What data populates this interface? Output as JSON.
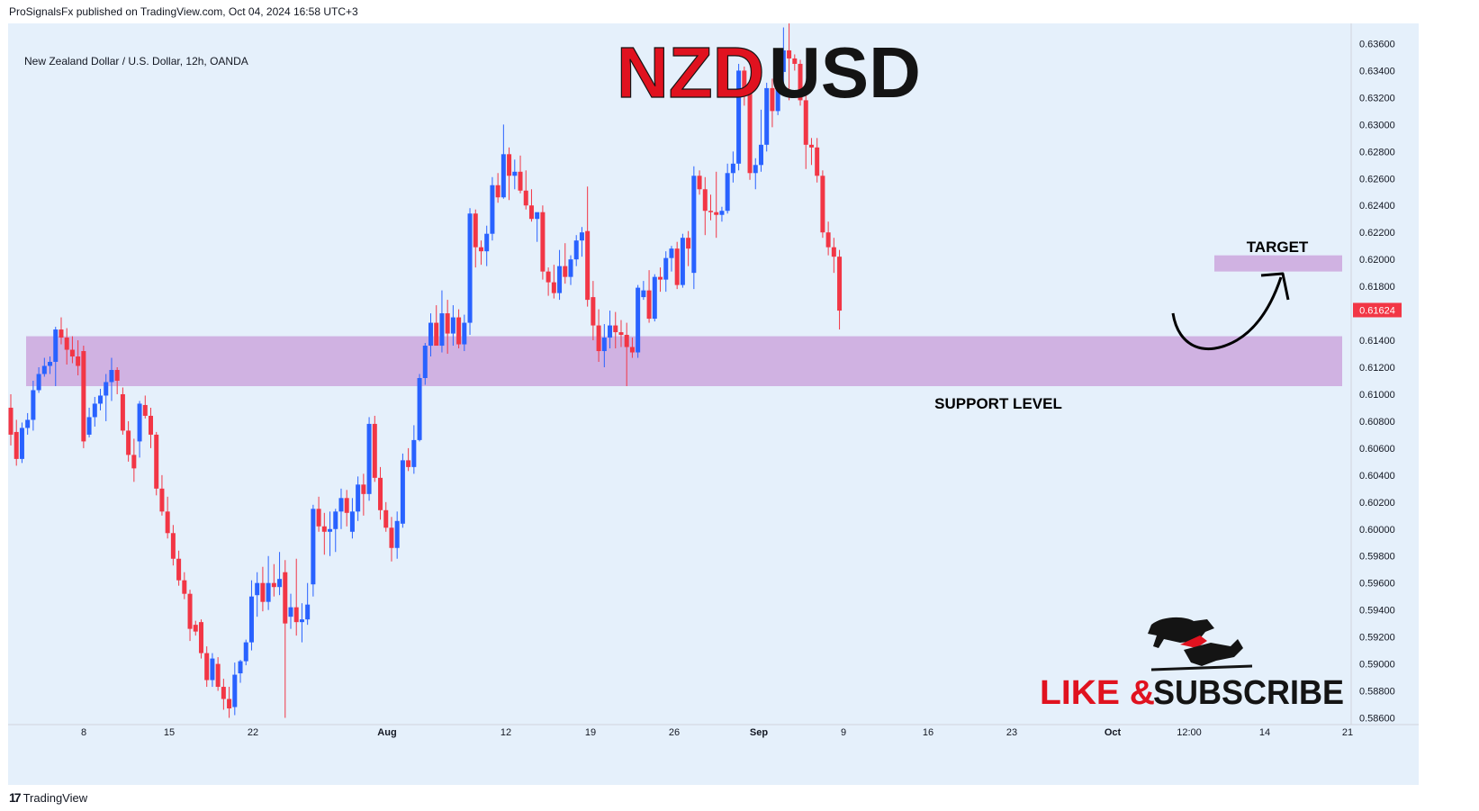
{
  "header": {
    "published": "ProSignalsFx published on TradingView.com, Oct 04, 2024 16:58 UTC+3",
    "symbol_line": "New Zealand Dollar / U.S. Dollar, 12h, OANDA"
  },
  "footer": {
    "brand": "TradingView",
    "logo_glyph": "17"
  },
  "annotations": {
    "title_a": "NZD",
    "title_b": "USD",
    "target": "TARGET",
    "support": "SUPPORT LEVEL",
    "cta_a": "LIKE & ",
    "cta_b": "SUBSCRIBE"
  },
  "chart_data": {
    "type": "candlestick",
    "title": "NZDUSD",
    "interval": "12h",
    "ylim": [
      0.5855,
      0.6375
    ],
    "y_ticks": [
      "0.63600",
      "0.63400",
      "0.63200",
      "0.63000",
      "0.62800",
      "0.62600",
      "0.62400",
      "0.62200",
      "0.62000",
      "0.61800",
      "0.61600",
      "0.61400",
      "0.61200",
      "0.61000",
      "0.60800",
      "0.60600",
      "0.60400",
      "0.60200",
      "0.60000",
      "0.59800",
      "0.59600",
      "0.59400",
      "0.59200",
      "0.59000",
      "0.58800",
      "0.58600"
    ],
    "x_ticks": [
      "8",
      "15",
      "22",
      "Aug",
      "12",
      "19",
      "26",
      "Sep",
      "9",
      "16",
      "23",
      "Oct",
      "12:00",
      "14",
      "21"
    ],
    "last_price": "0.61624",
    "bull_color": "#2962ff",
    "bear_color": "#f23645",
    "support_zone": [
      0.6106,
      0.6143
    ],
    "target_zone": [
      0.6191,
      0.6203
    ],
    "candles": [
      [
        0.609,
        0.61,
        0.6062,
        0.607
      ],
      [
        0.6072,
        0.6081,
        0.6047,
        0.6052
      ],
      [
        0.6052,
        0.6079,
        0.6049,
        0.6075
      ],
      [
        0.6075,
        0.6086,
        0.607,
        0.6081
      ],
      [
        0.6081,
        0.611,
        0.6073,
        0.6103
      ],
      [
        0.6103,
        0.612,
        0.6101,
        0.6115
      ],
      [
        0.6115,
        0.6127,
        0.6113,
        0.6121
      ],
      [
        0.6121,
        0.6128,
        0.6115,
        0.6124
      ],
      [
        0.6124,
        0.615,
        0.6106,
        0.6148
      ],
      [
        0.6148,
        0.6157,
        0.6137,
        0.6142
      ],
      [
        0.6142,
        0.6149,
        0.6122,
        0.6133
      ],
      [
        0.6133,
        0.6143,
        0.6123,
        0.6128
      ],
      [
        0.6128,
        0.614,
        0.6114,
        0.6121
      ],
      [
        0.6132,
        0.6136,
        0.606,
        0.6065
      ],
      [
        0.607,
        0.609,
        0.6068,
        0.6083
      ],
      [
        0.6083,
        0.6098,
        0.6076,
        0.6093
      ],
      [
        0.6093,
        0.6104,
        0.6088,
        0.6099
      ],
      [
        0.6099,
        0.6115,
        0.608,
        0.6109
      ],
      [
        0.6109,
        0.6127,
        0.6095,
        0.6118
      ],
      [
        0.6118,
        0.612,
        0.61,
        0.611
      ],
      [
        0.61,
        0.6105,
        0.607,
        0.6073
      ],
      [
        0.6073,
        0.608,
        0.605,
        0.6055
      ],
      [
        0.6055,
        0.6067,
        0.6035,
        0.6045
      ],
      [
        0.6065,
        0.6095,
        0.6053,
        0.6093
      ],
      [
        0.6092,
        0.6099,
        0.6082,
        0.6084
      ],
      [
        0.6084,
        0.609,
        0.606,
        0.607
      ],
      [
        0.607,
        0.6072,
        0.6025,
        0.603
      ],
      [
        0.603,
        0.604,
        0.601,
        0.6013
      ],
      [
        0.6013,
        0.6024,
        0.5993,
        0.5997
      ],
      [
        0.5997,
        0.6003,
        0.5973,
        0.5978
      ],
      [
        0.5978,
        0.5984,
        0.5958,
        0.5962
      ],
      [
        0.5962,
        0.5968,
        0.5948,
        0.5952
      ],
      [
        0.5952,
        0.5955,
        0.5917,
        0.5926
      ],
      [
        0.5929,
        0.5932,
        0.5921,
        0.5924
      ],
      [
        0.5931,
        0.5933,
        0.5904,
        0.5908
      ],
      [
        0.5908,
        0.5913,
        0.5883,
        0.5888
      ],
      [
        0.5888,
        0.5908,
        0.5883,
        0.5904
      ],
      [
        0.59,
        0.5905,
        0.588,
        0.5883
      ],
      [
        0.5883,
        0.5889,
        0.5866,
        0.5874
      ],
      [
        0.5874,
        0.5883,
        0.586,
        0.5867
      ],
      [
        0.5868,
        0.5901,
        0.5862,
        0.5892
      ],
      [
        0.5893,
        0.5903,
        0.5886,
        0.5902
      ],
      [
        0.5902,
        0.5918,
        0.5899,
        0.5916
      ],
      [
        0.5916,
        0.5962,
        0.591,
        0.595
      ],
      [
        0.5951,
        0.5968,
        0.5935,
        0.596
      ],
      [
        0.596,
        0.5972,
        0.5939,
        0.5946
      ],
      [
        0.5946,
        0.598,
        0.594,
        0.596
      ],
      [
        0.596,
        0.5974,
        0.595,
        0.5957
      ],
      [
        0.5957,
        0.5983,
        0.5951,
        0.5963
      ],
      [
        0.5968,
        0.5977,
        0.586,
        0.593
      ],
      [
        0.5935,
        0.5952,
        0.5926,
        0.5942
      ],
      [
        0.5942,
        0.5978,
        0.5921,
        0.5931
      ],
      [
        0.5931,
        0.5945,
        0.5916,
        0.5933
      ],
      [
        0.5933,
        0.596,
        0.5929,
        0.5944
      ],
      [
        0.5959,
        0.6018,
        0.595,
        0.6015
      ],
      [
        0.6015,
        0.6024,
        0.5998,
        0.6002
      ],
      [
        0.6002,
        0.6012,
        0.5981,
        0.5998
      ],
      [
        0.5998,
        0.6013,
        0.598,
        0.6
      ],
      [
        0.6,
        0.6015,
        0.5983,
        0.6013
      ],
      [
        0.6013,
        0.603,
        0.6,
        0.6023
      ],
      [
        0.6023,
        0.6029,
        0.6002,
        0.6012
      ],
      [
        0.5998,
        0.6023,
        0.5993,
        0.6013
      ],
      [
        0.6013,
        0.6039,
        0.6006,
        0.6033
      ],
      [
        0.6033,
        0.6041,
        0.601,
        0.6026
      ],
      [
        0.6026,
        0.6083,
        0.6021,
        0.6078
      ],
      [
        0.6078,
        0.6084,
        0.6035,
        0.6038
      ],
      [
        0.6038,
        0.6046,
        0.6007,
        0.6014
      ],
      [
        0.6014,
        0.602,
        0.5998,
        0.6001
      ],
      [
        0.6001,
        0.6009,
        0.5976,
        0.5986
      ],
      [
        0.5986,
        0.6013,
        0.5978,
        0.6006
      ],
      [
        0.6004,
        0.6056,
        0.6001,
        0.6051
      ],
      [
        0.6051,
        0.606,
        0.6043,
        0.6046
      ],
      [
        0.6046,
        0.6077,
        0.6041,
        0.6066
      ],
      [
        0.6066,
        0.6115,
        0.6065,
        0.6112
      ],
      [
        0.6112,
        0.6138,
        0.6107,
        0.6136
      ],
      [
        0.6136,
        0.616,
        0.6128,
        0.6153
      ],
      [
        0.6153,
        0.6166,
        0.614,
        0.6136
      ],
      [
        0.6136,
        0.6177,
        0.6131,
        0.616
      ],
      [
        0.616,
        0.617,
        0.613,
        0.6145
      ],
      [
        0.6145,
        0.6166,
        0.6136,
        0.6157
      ],
      [
        0.6157,
        0.6163,
        0.6134,
        0.6137
      ],
      [
        0.6137,
        0.6159,
        0.6132,
        0.6153
      ],
      [
        0.6153,
        0.6238,
        0.6144,
        0.6234
      ],
      [
        0.6234,
        0.6237,
        0.6194,
        0.6209
      ],
      [
        0.6209,
        0.6214,
        0.6196,
        0.6206
      ],
      [
        0.6206,
        0.6225,
        0.6195,
        0.6219
      ],
      [
        0.6219,
        0.6261,
        0.6214,
        0.6255
      ],
      [
        0.6255,
        0.6264,
        0.6242,
        0.6246
      ],
      [
        0.6246,
        0.63,
        0.6245,
        0.6278
      ],
      [
        0.6278,
        0.6283,
        0.6244,
        0.6262
      ],
      [
        0.6262,
        0.6274,
        0.6252,
        0.6265
      ],
      [
        0.6265,
        0.6277,
        0.6249,
        0.6251
      ],
      [
        0.6251,
        0.6266,
        0.6237,
        0.624
      ],
      [
        0.624,
        0.6252,
        0.6228,
        0.623
      ],
      [
        0.623,
        0.6233,
        0.6213,
        0.6235
      ],
      [
        0.6235,
        0.624,
        0.6185,
        0.6191
      ],
      [
        0.6191,
        0.6194,
        0.6173,
        0.6183
      ],
      [
        0.6183,
        0.6196,
        0.6171,
        0.6175
      ],
      [
        0.6175,
        0.6207,
        0.617,
        0.6195
      ],
      [
        0.6195,
        0.6212,
        0.6182,
        0.6187
      ],
      [
        0.6187,
        0.6203,
        0.6181,
        0.62
      ],
      [
        0.62,
        0.6218,
        0.6195,
        0.6214
      ],
      [
        0.6214,
        0.6224,
        0.6202,
        0.622
      ],
      [
        0.6221,
        0.6254,
        0.6165,
        0.617
      ],
      [
        0.6172,
        0.6184,
        0.614,
        0.6151
      ],
      [
        0.6151,
        0.6163,
        0.6124,
        0.6132
      ],
      [
        0.6132,
        0.6152,
        0.612,
        0.6142
      ],
      [
        0.6142,
        0.6162,
        0.6134,
        0.6151
      ],
      [
        0.6151,
        0.6161,
        0.6134,
        0.6146
      ],
      [
        0.6146,
        0.6155,
        0.6135,
        0.6144
      ],
      [
        0.6144,
        0.6153,
        0.6106,
        0.6135
      ],
      [
        0.6135,
        0.6142,
        0.6127,
        0.6131
      ],
      [
        0.6131,
        0.6181,
        0.6127,
        0.6179
      ],
      [
        0.6172,
        0.6184,
        0.617,
        0.6177
      ],
      [
        0.6177,
        0.6192,
        0.6153,
        0.6156
      ],
      [
        0.6156,
        0.6189,
        0.6154,
        0.6187
      ],
      [
        0.6187,
        0.6194,
        0.6176,
        0.6185
      ],
      [
        0.6185,
        0.6206,
        0.6176,
        0.6201
      ],
      [
        0.6201,
        0.621,
        0.6191,
        0.6208
      ],
      [
        0.6208,
        0.6213,
        0.6178,
        0.6181
      ],
      [
        0.6181,
        0.6219,
        0.6179,
        0.6216
      ],
      [
        0.6216,
        0.6221,
        0.6195,
        0.6208
      ],
      [
        0.619,
        0.6269,
        0.6178,
        0.6262
      ],
      [
        0.6262,
        0.6266,
        0.6248,
        0.6252
      ],
      [
        0.6252,
        0.6261,
        0.6218,
        0.6236
      ],
      [
        0.6236,
        0.6248,
        0.6229,
        0.6235
      ],
      [
        0.6235,
        0.6265,
        0.6216,
        0.6233
      ],
      [
        0.6233,
        0.6239,
        0.6228,
        0.6236
      ],
      [
        0.6236,
        0.6271,
        0.6234,
        0.6264
      ],
      [
        0.6264,
        0.628,
        0.6257,
        0.6271
      ],
      [
        0.6271,
        0.6345,
        0.6266,
        0.634
      ],
      [
        0.634,
        0.6343,
        0.6314,
        0.6324
      ],
      [
        0.6324,
        0.6327,
        0.6259,
        0.6264
      ],
      [
        0.6264,
        0.6275,
        0.6252,
        0.627
      ],
      [
        0.627,
        0.6311,
        0.6265,
        0.6285
      ],
      [
        0.6285,
        0.6331,
        0.628,
        0.6327
      ],
      [
        0.6327,
        0.6334,
        0.6298,
        0.631
      ],
      [
        0.631,
        0.6348,
        0.6307,
        0.6339
      ],
      [
        0.6339,
        0.6372,
        0.6326,
        0.6355
      ],
      [
        0.6355,
        0.6378,
        0.6318,
        0.6349
      ],
      [
        0.6349,
        0.6352,
        0.634,
        0.6345
      ],
      [
        0.6345,
        0.6348,
        0.6314,
        0.6318
      ],
      [
        0.6318,
        0.6323,
        0.6267,
        0.6285
      ],
      [
        0.6285,
        0.629,
        0.627,
        0.6283
      ],
      [
        0.6283,
        0.629,
        0.6257,
        0.6262
      ],
      [
        0.6262,
        0.6266,
        0.6216,
        0.622
      ],
      [
        0.622,
        0.6228,
        0.6203,
        0.6209
      ],
      [
        0.6209,
        0.6216,
        0.619,
        0.6202
      ],
      [
        0.6202,
        0.6207,
        0.6148,
        0.6162
      ]
    ]
  }
}
